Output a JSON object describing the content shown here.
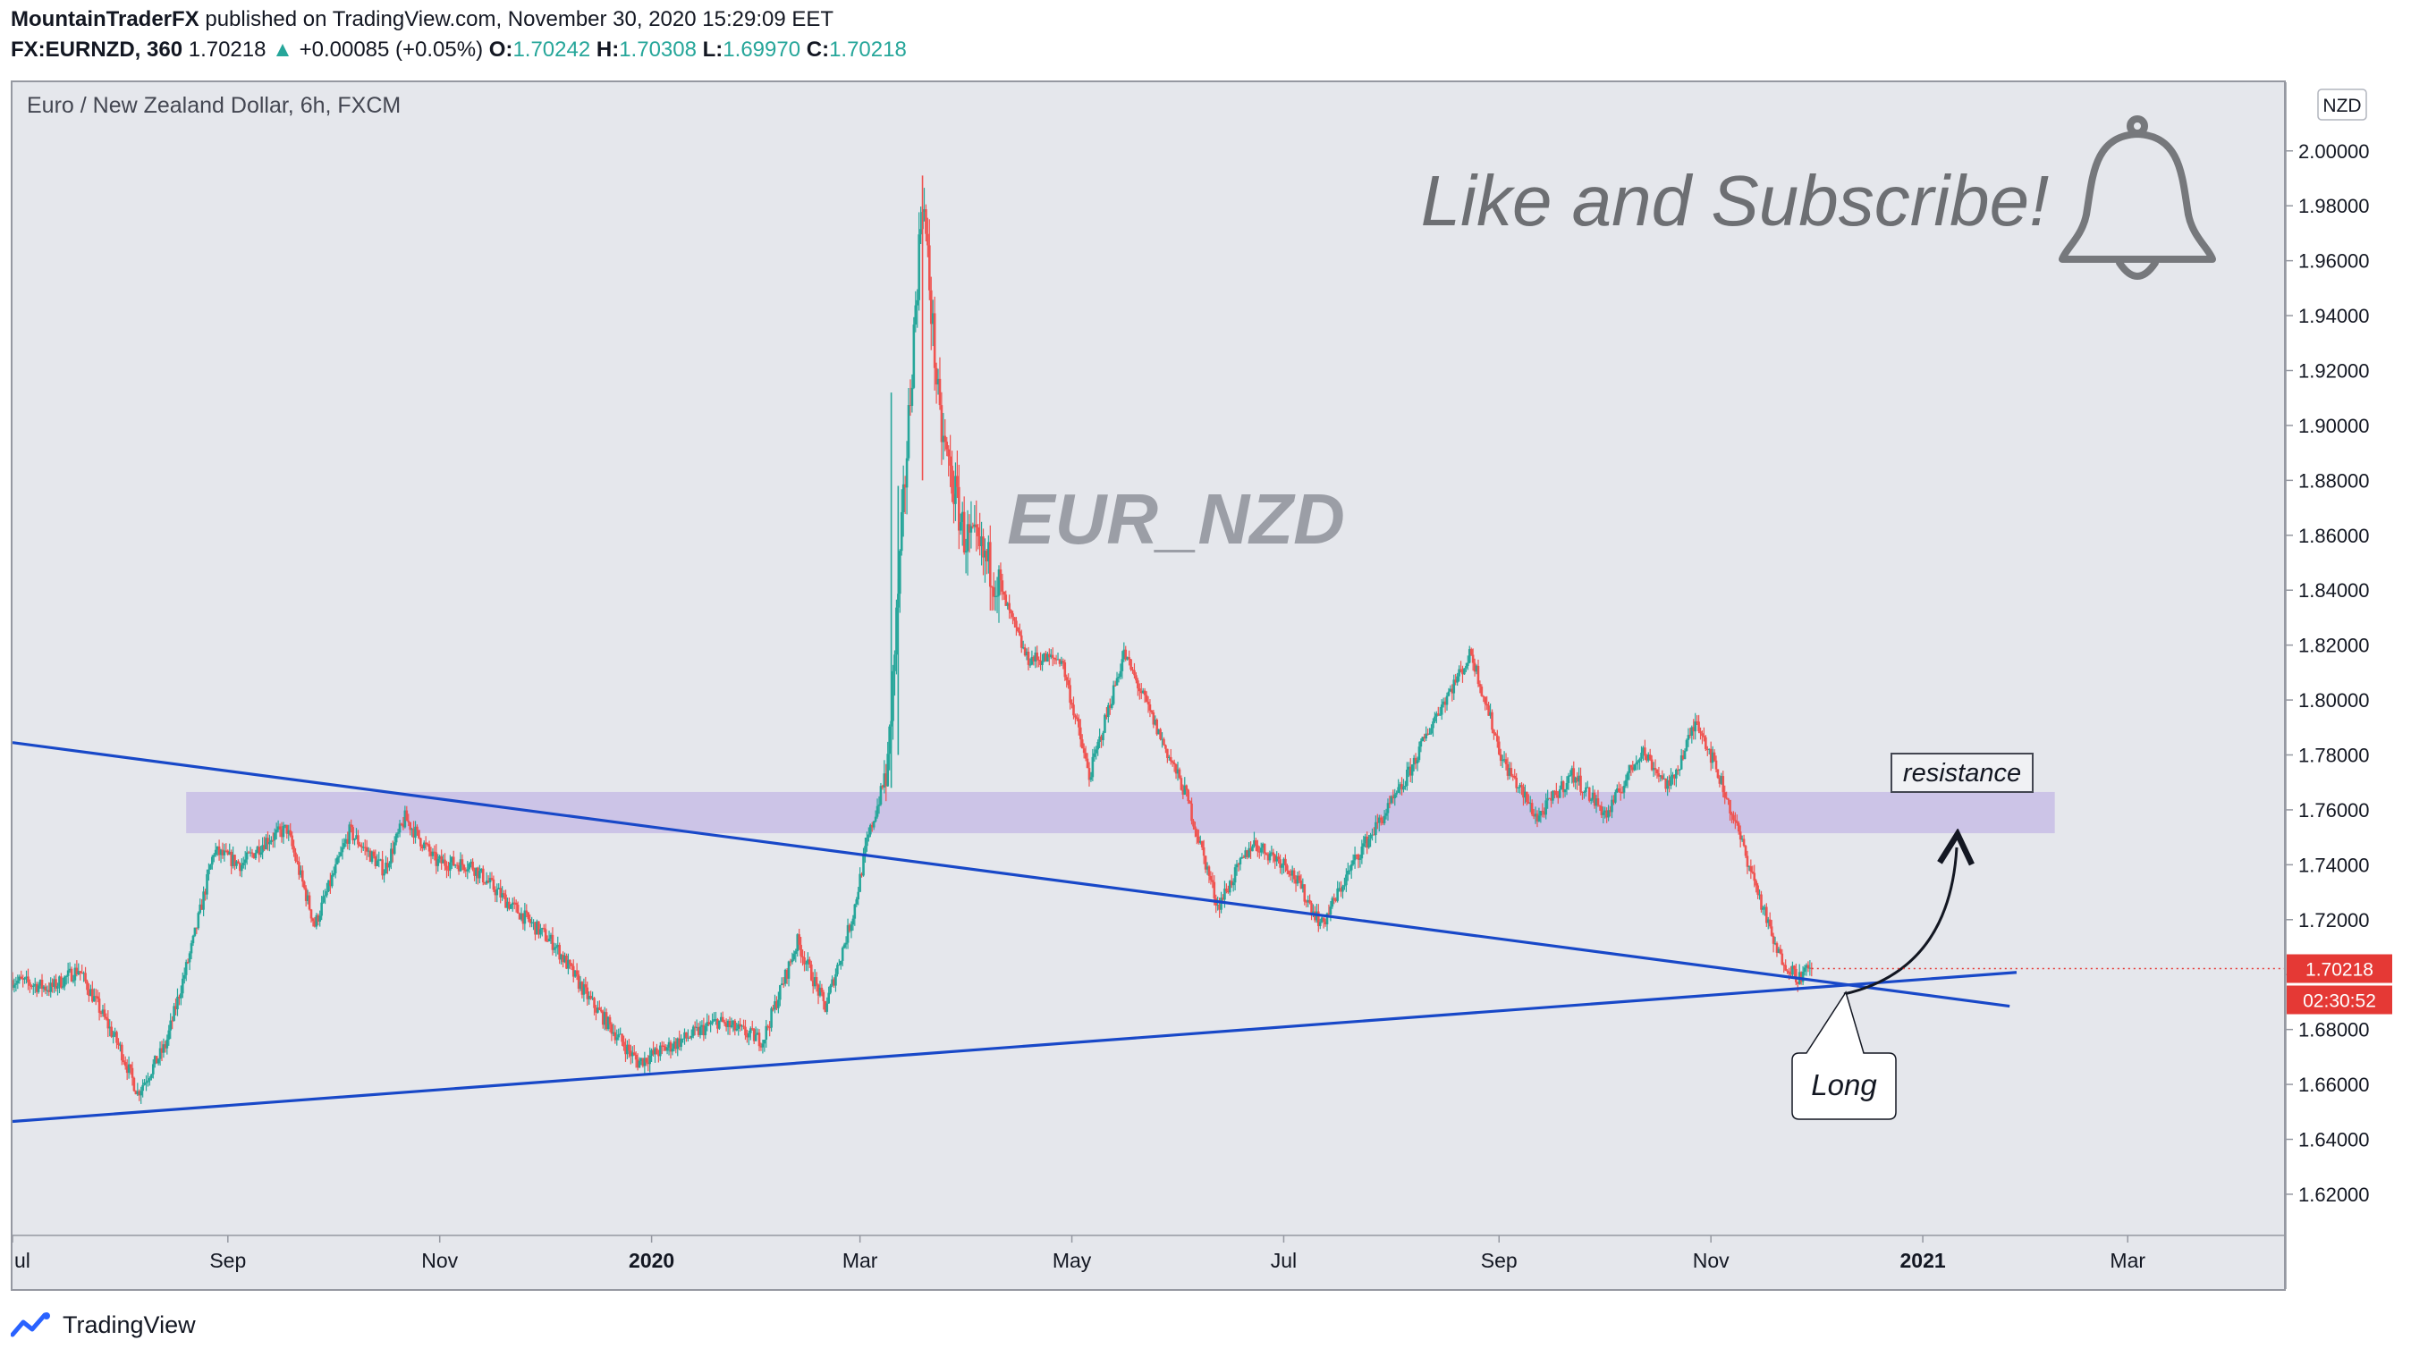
{
  "header": {
    "author": "MountainTraderFX",
    "published": "published on TradingView.com, November 30, 2020 15:29:09 EET",
    "symbol": "FX:EURNZD, 360",
    "price": "1.70218",
    "change": "+0.00085 (+0.05%)",
    "o_label": "O:",
    "o_value": "1.70242",
    "h_label": "H:",
    "h_value": "1.70308",
    "l_label": "L:",
    "l_value": "1.69970",
    "c_label": "C:",
    "c_value": "1.70218"
  },
  "chart_title": "Euro / New Zealand Dollar, 6h, FXCM",
  "footer": {
    "brand": "TradingView"
  },
  "colors": {
    "up": "#26a69a",
    "down": "#ef5350",
    "trendline": "#1848c8",
    "zone": "#c8bde6",
    "price_tag": "#e53935",
    "plot_bg": "#e5e7ec"
  },
  "chart_data": {
    "type": "candlestick",
    "ylim": [
      1.605,
      2.025
    ],
    "y_ticks": [
      "2.00000",
      "1.98000",
      "1.96000",
      "1.94000",
      "1.92000",
      "1.90000",
      "1.88000",
      "1.86000",
      "1.84000",
      "1.82000",
      "1.80000",
      "1.78000",
      "1.76000",
      "1.74000",
      "1.72000",
      "1.70000",
      "1.68000",
      "1.66000",
      "1.64000",
      "1.62000"
    ],
    "y_tick_values": [
      2.0,
      1.98,
      1.96,
      1.94,
      1.92,
      1.9,
      1.88,
      1.86,
      1.84,
      1.82,
      1.8,
      1.78,
      1.76,
      1.74,
      1.72,
      1.7,
      1.68,
      1.66,
      1.64,
      1.62
    ],
    "currency_badge": "NZD",
    "x_labels": [
      "ul",
      "Sep",
      "Nov",
      "2020",
      "Mar",
      "May",
      "Jul",
      "Sep",
      "Nov",
      "2021",
      "Mar"
    ],
    "x_label_bold": [
      false,
      false,
      false,
      true,
      false,
      false,
      false,
      false,
      false,
      true,
      false
    ],
    "x_label_dates": [
      "2019-07-01",
      "2019-09-01",
      "2019-11-01",
      "2020-01-01",
      "2020-03-01",
      "2020-05-01",
      "2020-07-01",
      "2020-09-01",
      "2020-11-01",
      "2021-01-01",
      "2021-03-01"
    ],
    "x_range": [
      "2019-07-01",
      "2021-04-15"
    ],
    "price_keypoints": [
      [
        "2019-07-01",
        1.698
      ],
      [
        "2019-07-12",
        1.695
      ],
      [
        "2019-07-20",
        1.702
      ],
      [
        "2019-08-01",
        1.673
      ],
      [
        "2019-08-06",
        1.657
      ],
      [
        "2019-08-14",
        1.674
      ],
      [
        "2019-08-22",
        1.712
      ],
      [
        "2019-08-28",
        1.745
      ],
      [
        "2019-09-05",
        1.74
      ],
      [
        "2019-09-12",
        1.749
      ],
      [
        "2019-09-18",
        1.753
      ],
      [
        "2019-09-26",
        1.718
      ],
      [
        "2019-10-06",
        1.752
      ],
      [
        "2019-10-16",
        1.738
      ],
      [
        "2019-10-22",
        1.757
      ],
      [
        "2019-10-31",
        1.741
      ],
      [
        "2019-11-10",
        1.74
      ],
      [
        "2019-11-20",
        1.727
      ],
      [
        "2019-12-04",
        1.711
      ],
      [
        "2019-12-14",
        1.691
      ],
      [
        "2019-12-28",
        1.668
      ],
      [
        "2020-01-08",
        1.675
      ],
      [
        "2020-01-20",
        1.683
      ],
      [
        "2020-02-02",
        1.676
      ],
      [
        "2020-02-12",
        1.712
      ],
      [
        "2020-02-20",
        1.688
      ],
      [
        "2020-02-28",
        1.722
      ],
      [
        "2020-03-03",
        1.748
      ],
      [
        "2020-03-09",
        1.775
      ],
      [
        "2020-03-13",
        1.86
      ],
      [
        "2020-03-19",
        1.985
      ],
      [
        "2020-03-24",
        1.9
      ],
      [
        "2020-03-31",
        1.86
      ],
      [
        "2020-04-08",
        1.848
      ],
      [
        "2020-04-18",
        1.815
      ],
      [
        "2020-04-28",
        1.815
      ],
      [
        "2020-05-06",
        1.772
      ],
      [
        "2020-05-16",
        1.817
      ],
      [
        "2020-05-26",
        1.788
      ],
      [
        "2020-06-03",
        1.765
      ],
      [
        "2020-06-12",
        1.725
      ],
      [
        "2020-06-22",
        1.748
      ],
      [
        "2020-07-02",
        1.74
      ],
      [
        "2020-07-12",
        1.718
      ],
      [
        "2020-07-22",
        1.743
      ],
      [
        "2020-08-04",
        1.768
      ],
      [
        "2020-08-14",
        1.795
      ],
      [
        "2020-08-24",
        1.817
      ],
      [
        "2020-09-02",
        1.778
      ],
      [
        "2020-09-12",
        1.757
      ],
      [
        "2020-09-22",
        1.773
      ],
      [
        "2020-10-02",
        1.758
      ],
      [
        "2020-10-12",
        1.782
      ],
      [
        "2020-10-20",
        1.768
      ],
      [
        "2020-10-28",
        1.793
      ],
      [
        "2020-11-04",
        1.77
      ],
      [
        "2020-11-12",
        1.74
      ],
      [
        "2020-11-20",
        1.708
      ],
      [
        "2020-11-26",
        1.699
      ],
      [
        "2020-11-30",
        1.7022
      ]
    ],
    "trendlines": [
      {
        "name": "descending trendline",
        "from": [
          "2019-07-01",
          1.7845
        ],
        "to": [
          "2021-01-26",
          1.6885
        ]
      },
      {
        "name": "ascending trendline",
        "from": [
          "2019-07-01",
          1.6465
        ],
        "to": [
          "2021-01-28",
          1.7008
        ]
      }
    ],
    "resistance_zone": {
      "x0": "2019-08-20",
      "x1": "2021-02-08",
      "y0": 1.7515,
      "y1": 1.7665
    },
    "annotations": {
      "resistance": "resistance",
      "long": "Long",
      "watermark": "EUR_NZD",
      "cta": "Like and Subscribe!"
    },
    "last_price_tag": "1.70218",
    "countdown_tag": "02:30:52"
  }
}
